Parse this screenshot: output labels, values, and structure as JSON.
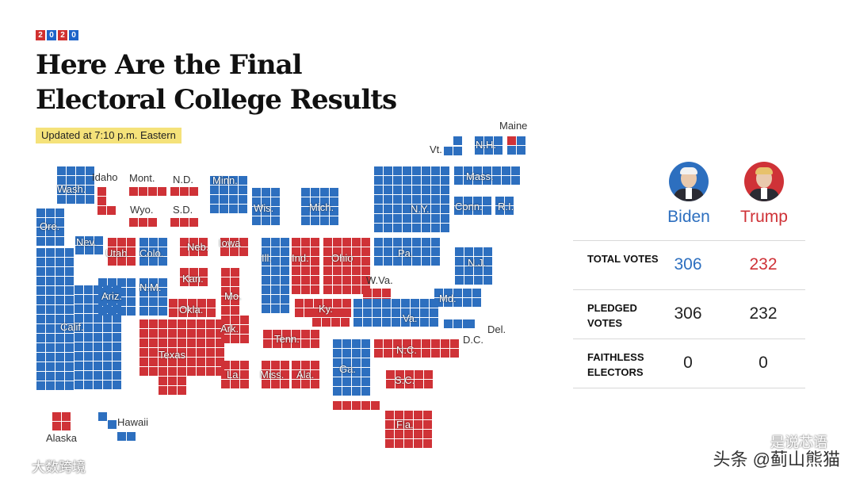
{
  "badge": [
    "2",
    "0",
    "2",
    "0"
  ],
  "headline": "Here Are the Final Electoral College Results",
  "updated": "Updated at 7:10 p.m. Eastern",
  "colors": {
    "dem": "#2d6fbf",
    "rep": "#cf3237",
    "highlight": "#f5e27a"
  },
  "candidates": [
    {
      "name": "Biden",
      "party": "dem",
      "icon": "biden-portrait"
    },
    {
      "name": "Trump",
      "party": "rep",
      "icon": "trump-portrait"
    }
  ],
  "results": [
    {
      "label": "TOTAL VOTES",
      "biden": "306",
      "trump": "232"
    },
    {
      "label": "PLEDGED VOTES",
      "biden": "306",
      "trump": "232"
    },
    {
      "label": "FAITHLESS ELECTORS",
      "biden": "0",
      "trump": "0"
    }
  ],
  "states": [
    {
      "abbr": "Wash.",
      "party": "dem"
    },
    {
      "abbr": "Idaho",
      "party": "rep"
    },
    {
      "abbr": "Mont.",
      "party": "rep"
    },
    {
      "abbr": "N.D.",
      "party": "rep"
    },
    {
      "abbr": "Minn.",
      "party": "dem"
    },
    {
      "abbr": "Wyo.",
      "party": "rep"
    },
    {
      "abbr": "S.D.",
      "party": "rep"
    },
    {
      "abbr": "Wis.",
      "party": "dem"
    },
    {
      "abbr": "Mich.",
      "party": "dem"
    },
    {
      "abbr": "Ore.",
      "party": "dem"
    },
    {
      "abbr": "Nev.",
      "party": "dem"
    },
    {
      "abbr": "Utah",
      "party": "rep"
    },
    {
      "abbr": "Colo.",
      "party": "dem"
    },
    {
      "abbr": "Neb.",
      "party": "rep"
    },
    {
      "abbr": "Iowa",
      "party": "rep"
    },
    {
      "abbr": "Ill.",
      "party": "dem"
    },
    {
      "abbr": "Ind.",
      "party": "rep"
    },
    {
      "abbr": "Ohio",
      "party": "rep"
    },
    {
      "abbr": "Pa.",
      "party": "dem"
    },
    {
      "abbr": "N.Y.",
      "party": "dem"
    },
    {
      "abbr": "Vt.",
      "party": "dem"
    },
    {
      "abbr": "N.H.",
      "party": "dem"
    },
    {
      "abbr": "Maine",
      "party": "dem"
    },
    {
      "abbr": "Mass.",
      "party": "dem"
    },
    {
      "abbr": "Conn.",
      "party": "dem"
    },
    {
      "abbr": "R.I.",
      "party": "dem"
    },
    {
      "abbr": "N.J.",
      "party": "dem"
    },
    {
      "abbr": "Calif.",
      "party": "dem"
    },
    {
      "abbr": "Ariz.",
      "party": "dem"
    },
    {
      "abbr": "N.M.",
      "party": "dem"
    },
    {
      "abbr": "Kan.",
      "party": "rep"
    },
    {
      "abbr": "Okla.",
      "party": "rep"
    },
    {
      "abbr": "Mo.",
      "party": "rep"
    },
    {
      "abbr": "Ky.",
      "party": "rep"
    },
    {
      "abbr": "W.Va.",
      "party": "rep"
    },
    {
      "abbr": "Md.",
      "party": "dem"
    },
    {
      "abbr": "Del.",
      "party": "dem"
    },
    {
      "abbr": "Va.",
      "party": "dem"
    },
    {
      "abbr": "D.C.",
      "party": "dem"
    },
    {
      "abbr": "Texas",
      "party": "rep"
    },
    {
      "abbr": "Ark.",
      "party": "rep"
    },
    {
      "abbr": "Tenn.",
      "party": "rep"
    },
    {
      "abbr": "N.C.",
      "party": "rep"
    },
    {
      "abbr": "La.",
      "party": "rep"
    },
    {
      "abbr": "Miss.",
      "party": "rep"
    },
    {
      "abbr": "Ala.",
      "party": "rep"
    },
    {
      "abbr": "Ga.",
      "party": "dem"
    },
    {
      "abbr": "S.C.",
      "party": "rep"
    },
    {
      "abbr": "Fla.",
      "party": "rep"
    },
    {
      "abbr": "Alaska",
      "party": "rep"
    },
    {
      "abbr": "Hawaii",
      "party": "dem"
    }
  ],
  "watermarks": {
    "left": "大数跨境",
    "source": "头条 @蓟山熊猫",
    "top": "是说芯语"
  }
}
